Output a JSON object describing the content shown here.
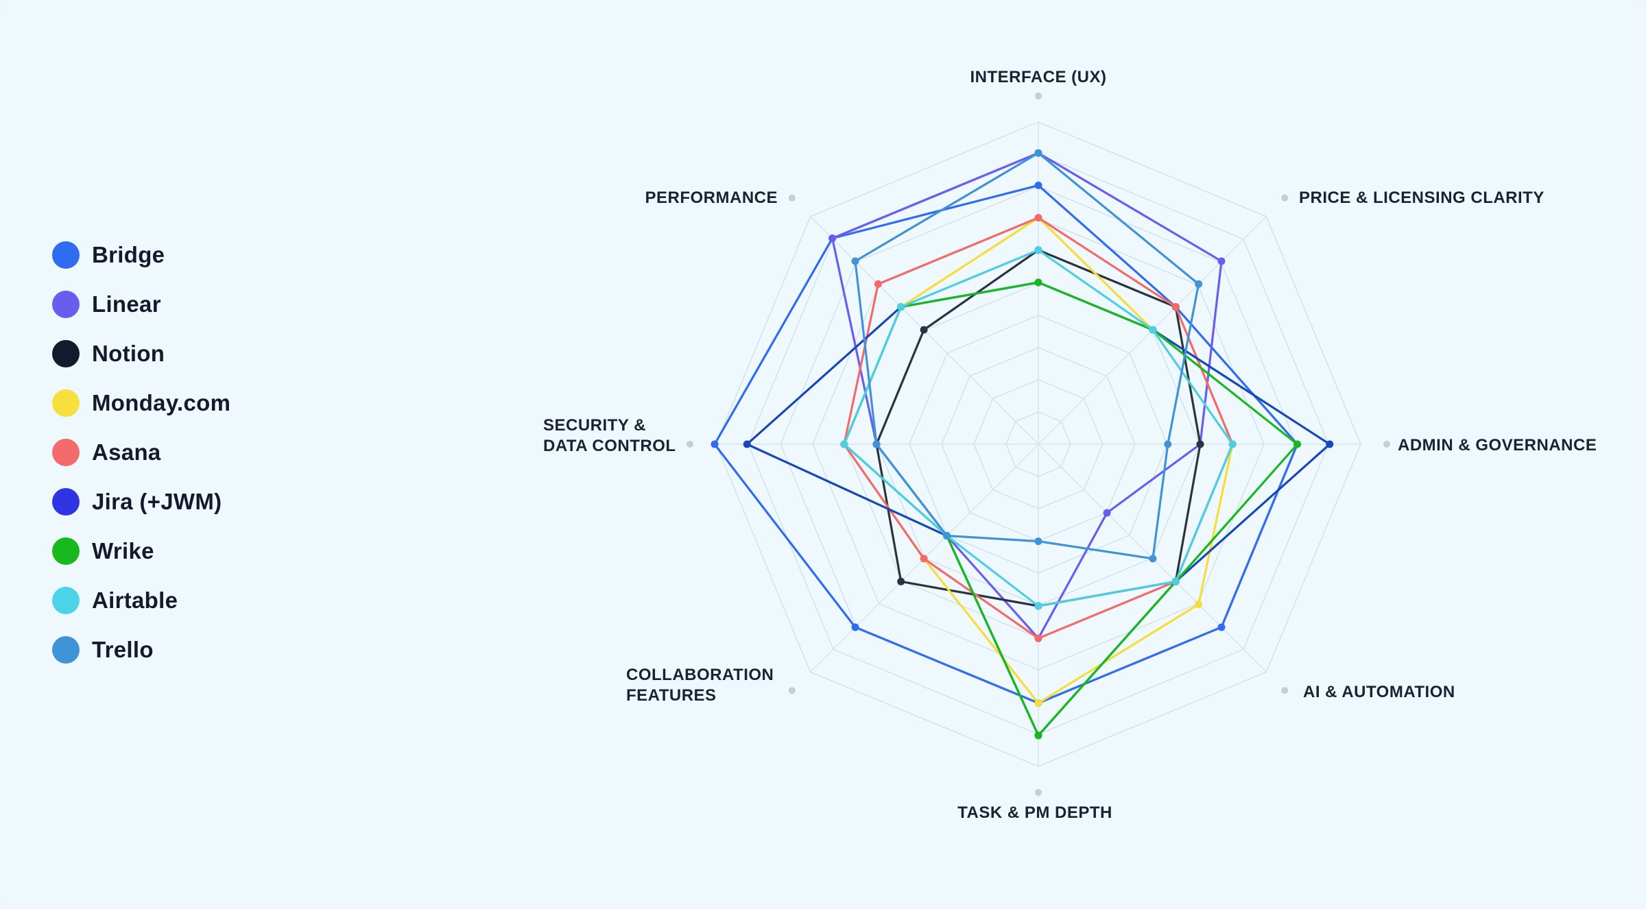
{
  "chart_data": {
    "type": "radar",
    "title": "",
    "axes": [
      "INTERFACE (UX)",
      "PRICE & LICENSING CLARITY",
      "ADMIN & GOVERNANCE",
      "AI & AUTOMATION",
      "TASK & PM DEPTH",
      "COLLABORATION FEATURES",
      "SECURITY & DATA CONTROL",
      "PERFORMANCE"
    ],
    "axis_label_lines": [
      [
        "INTERFACE (UX)"
      ],
      [
        "PRICE & LICENSING CLARITY"
      ],
      [
        "ADMIN & GOVERNANCE"
      ],
      [
        "AI & AUTOMATION"
      ],
      [
        "TASK & PM DEPTH"
      ],
      [
        "COLLABORATION",
        "FEATURES"
      ],
      [
        "SECURITY &",
        "DATA CONTROL"
      ],
      [
        "PERFORMANCE"
      ]
    ],
    "rlim": [
      0,
      10
    ],
    "grid_levels": 10,
    "legend_position": "left",
    "series": [
      {
        "name": "Bridge",
        "color": "#2f6cf2",
        "values": [
          8,
          6,
          8,
          8,
          8,
          8,
          10,
          9
        ]
      },
      {
        "name": "Linear",
        "color": "#6b5cf0",
        "values": [
          9,
          8,
          5,
          3,
          6,
          4,
          5,
          9
        ]
      },
      {
        "name": "Notion",
        "color": "#2b3240",
        "values": [
          6,
          6,
          5,
          6,
          5,
          6,
          5,
          5
        ]
      },
      {
        "name": "Monday.com",
        "color": "#f5dd3c",
        "values": [
          7,
          5,
          6,
          7,
          8,
          5,
          6,
          6
        ]
      },
      {
        "name": "Asana",
        "color": "#f26b6b",
        "values": [
          7,
          6,
          6,
          6,
          6,
          5,
          6,
          7
        ]
      },
      {
        "name": "Jira (+JWM)",
        "color": "#1a47b8",
        "values": [
          5,
          5,
          9,
          6,
          9,
          4,
          9,
          6
        ]
      },
      {
        "name": "Wrike",
        "color": "#18b91f",
        "values": [
          5,
          5,
          8,
          6,
          9,
          4,
          6,
          6
        ]
      },
      {
        "name": "Airtable",
        "color": "#4ccfe2",
        "values": [
          6,
          5,
          6,
          6,
          5,
          4,
          6,
          6
        ]
      },
      {
        "name": "Trello",
        "color": "#3f93d6",
        "values": [
          9,
          7,
          4,
          5,
          3,
          4,
          5,
          8
        ]
      }
    ]
  },
  "legend": {
    "items": [
      {
        "label": "Bridge",
        "color": "#2f6cf2"
      },
      {
        "label": "Linear",
        "color": "#6b5cf0"
      },
      {
        "label": "Notion",
        "color": "#131a2c"
      },
      {
        "label": "Monday.com",
        "color": "#f7df3e"
      },
      {
        "label": "Asana",
        "color": "#f46b6b"
      },
      {
        "label": "Jira (+JWM)",
        "color": "#2f35e3"
      },
      {
        "label": "Wrike",
        "color": "#18b91f"
      },
      {
        "label": "Airtable",
        "color": "#4bd3e8"
      },
      {
        "label": "Trello",
        "color": "#3f93d6"
      }
    ]
  }
}
